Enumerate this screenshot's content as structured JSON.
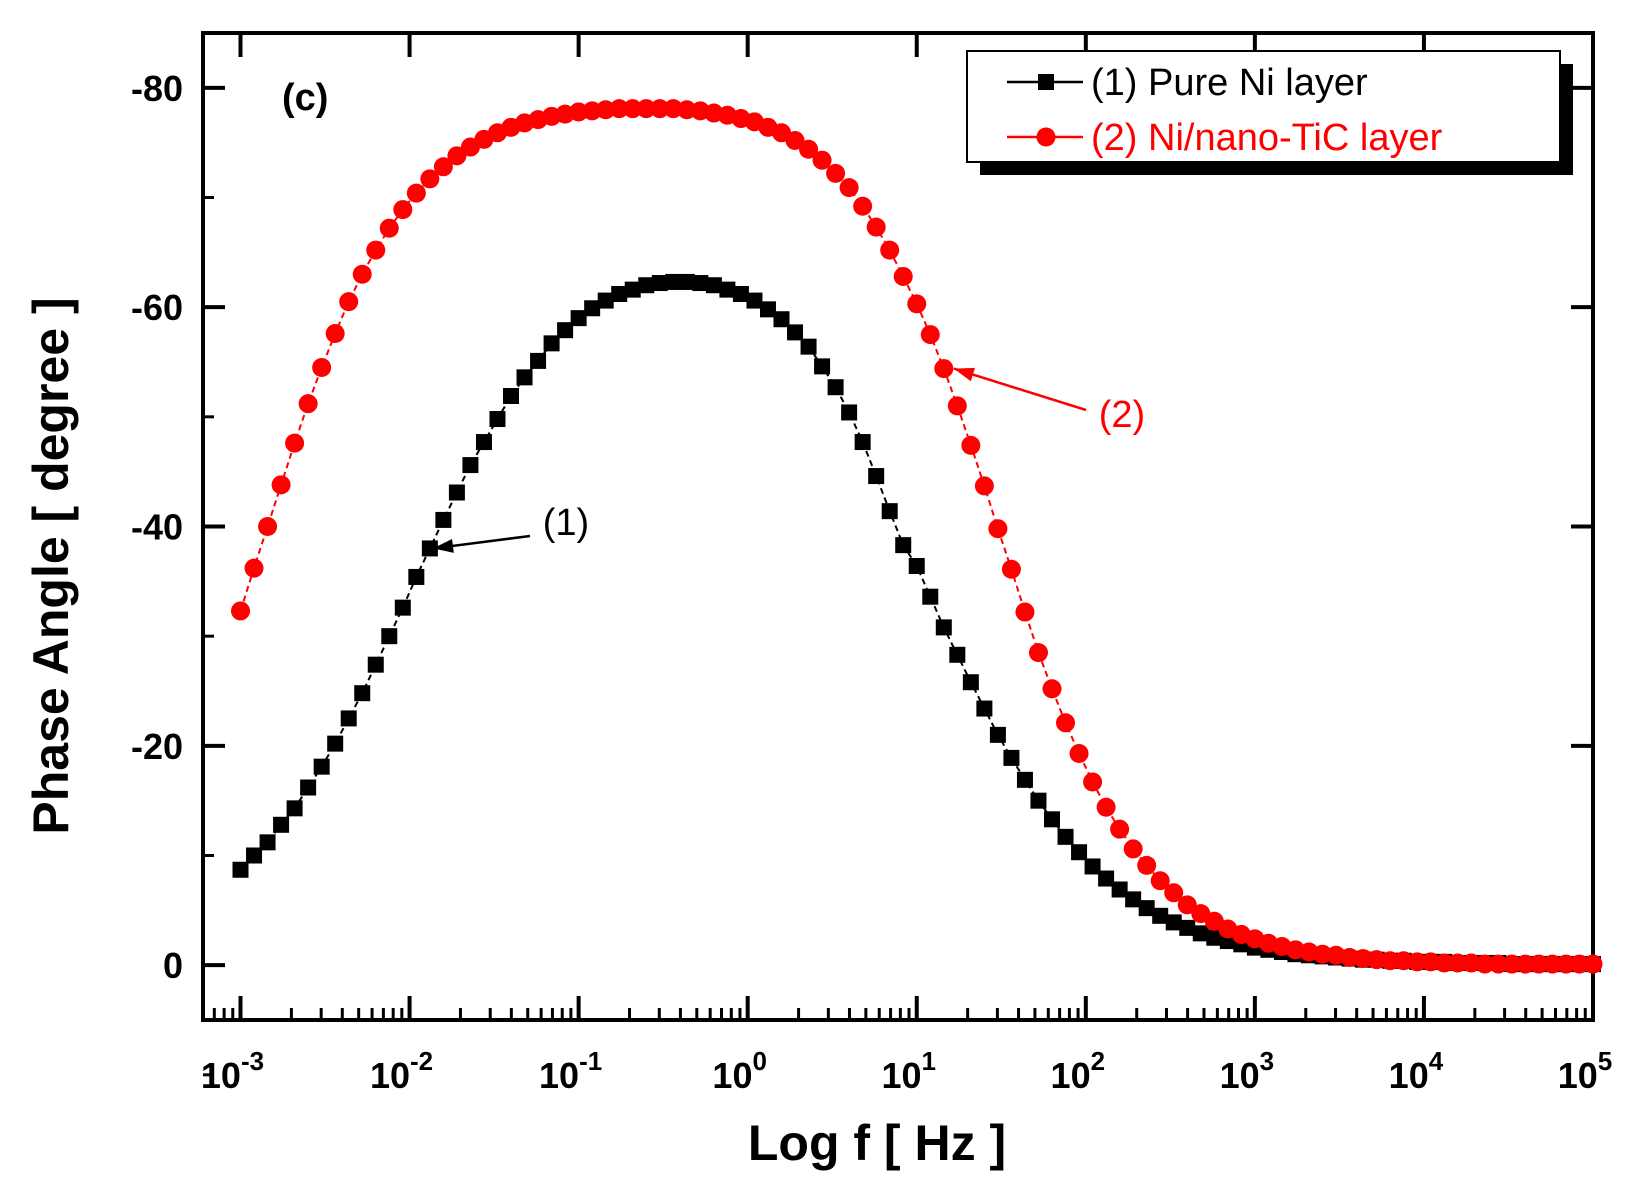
{
  "chart_data": {
    "type": "scatter",
    "panel_label": "(c)",
    "xlabel": "Log f  [ Hz ]",
    "ylabel": "Phase Angle [ degree ]",
    "xscale": "log",
    "xlim": [
      0.0006,
      100000
    ],
    "ylim": [
      5,
      -85
    ],
    "y_ticks": [
      -80,
      -60,
      -40,
      -20,
      0
    ],
    "y_tick_labels": [
      "-80",
      "-60",
      "-40",
      "-20",
      "0"
    ],
    "x_ticks": [
      {
        "base": "10",
        "exp": "-3",
        "value": 0.001
      },
      {
        "base": "10",
        "exp": "-2",
        "value": 0.01
      },
      {
        "base": "10",
        "exp": "-1",
        "value": 0.1
      },
      {
        "base": "10",
        "exp": "0",
        "value": 1
      },
      {
        "base": "10",
        "exp": "1",
        "value": 10
      },
      {
        "base": "10",
        "exp": "2",
        "value": 100
      },
      {
        "base": "10",
        "exp": "3",
        "value": 1000
      },
      {
        "base": "10",
        "exp": "4",
        "value": 10000
      },
      {
        "base": "10",
        "exp": "5",
        "value": 100000
      }
    ],
    "legend_position": "top-right",
    "series": [
      {
        "name": "(1) Pure Ni layer",
        "color": "#000000",
        "marker": "square",
        "log10_f_start": -3,
        "log10_f_end": 5,
        "n_points": 101,
        "phase_deg": [
          -8.7,
          -10,
          -11.2,
          -12.8,
          -14.3,
          -16.2,
          -18.1,
          -20.2,
          -22.5,
          -24.8,
          -27.4,
          -30,
          -32.6,
          -35.4,
          -38,
          -40.6,
          -43.1,
          -45.6,
          -47.7,
          -49.8,
          -51.9,
          -53.6,
          -55.1,
          -56.7,
          -57.9,
          -59,
          -59.9,
          -60.6,
          -61.2,
          -61.6,
          -62,
          -62.2,
          -62.3,
          -62.3,
          -62.2,
          -62,
          -61.6,
          -61.2,
          -60.6,
          -59.8,
          -58.9,
          -57.7,
          -56.4,
          -54.6,
          -52.7,
          -50.4,
          -47.7,
          -44.6,
          -41.4,
          -38.3,
          -36.4,
          -33.6,
          -30.8,
          -28.3,
          -25.8,
          -23.4,
          -21,
          -18.9,
          -16.9,
          -15,
          -13.3,
          -11.7,
          -10.3,
          -9,
          -7.9,
          -6.9,
          -6,
          -5.2,
          -4.5,
          -3.9,
          -3.4,
          -2.9,
          -2.5,
          -2.2,
          -1.9,
          -1.6,
          -1.4,
          -1.2,
          -1,
          -0.9,
          -0.8,
          -0.7,
          -0.6,
          -0.5,
          -0.5,
          -0.4,
          -0.4,
          -0.3,
          -0.3,
          -0.3,
          -0.2,
          -0.2,
          -0.2,
          -0.2,
          -0.1,
          -0.1,
          -0.1,
          -0.1,
          -0.1,
          -0.1,
          -0.1
        ]
      },
      {
        "name": "(2) Ni/nano-TiC layer",
        "color": "#ff0000",
        "marker": "circle",
        "log10_f_start": -3,
        "log10_f_end": 5,
        "n_points": 101,
        "phase_deg": [
          -32.3,
          -36.2,
          -40,
          -43.8,
          -47.6,
          -51.2,
          -54.5,
          -57.6,
          -60.5,
          -63,
          -65.2,
          -67.2,
          -68.9,
          -70.4,
          -71.7,
          -72.8,
          -73.8,
          -74.6,
          -75.3,
          -75.9,
          -76.4,
          -76.8,
          -77.1,
          -77.4,
          -77.6,
          -77.8,
          -77.9,
          -78,
          -78.1,
          -78.1,
          -78.1,
          -78.1,
          -78.1,
          -78,
          -77.9,
          -77.7,
          -77.5,
          -77.2,
          -76.9,
          -76.4,
          -75.9,
          -75.2,
          -74.4,
          -73.4,
          -72.2,
          -70.9,
          -69.2,
          -67.3,
          -65.2,
          -62.8,
          -60.3,
          -57.5,
          -54.4,
          -51,
          -47.4,
          -43.7,
          -39.8,
          -36.1,
          -32.2,
          -28.5,
          -25.2,
          -22.1,
          -19.3,
          -16.7,
          -14.4,
          -12.4,
          -10.6,
          -9.1,
          -7.7,
          -6.6,
          -5.5,
          -4.7,
          -4,
          -3.3,
          -2.8,
          -2.4,
          -2,
          -1.7,
          -1.4,
          -1.2,
          -1,
          -0.9,
          -0.7,
          -0.6,
          -0.5,
          -0.4,
          -0.4,
          -0.3,
          -0.3,
          -0.2,
          -0.2,
          -0.2,
          -0.1,
          -0.1,
          -0.1,
          -0.1,
          -0.1,
          -0.1,
          -0.1,
          -0.1,
          -0.1
        ]
      }
    ],
    "annotations": [
      {
        "text": "(1)",
        "series": 0,
        "target_log10_f": -1.92,
        "color": "#000000"
      },
      {
        "text": "(2)",
        "series": 1,
        "target_log10_f": 1.16,
        "color": "#ff0000"
      }
    ]
  }
}
